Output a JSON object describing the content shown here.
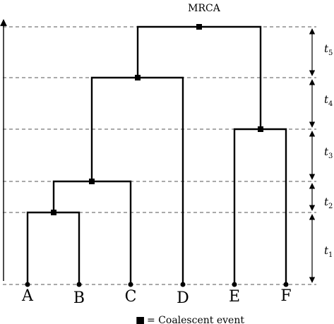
{
  "diagram": {
    "mrca_label": "MRCA",
    "leaves": [
      "A",
      "B",
      "C",
      "D",
      "E",
      "F"
    ],
    "intervals": [
      {
        "symbol": "t",
        "index": "1"
      },
      {
        "symbol": "t",
        "index": "2"
      },
      {
        "symbol": "t",
        "index": "3"
      },
      {
        "symbol": "t",
        "index": "4"
      },
      {
        "symbol": "t",
        "index": "5"
      }
    ],
    "legend": {
      "marker": "■",
      "text": "= Coalescent event"
    },
    "colors": {
      "tree": "#000000",
      "level_lines": "#555555",
      "background": "#ffffff"
    }
  }
}
